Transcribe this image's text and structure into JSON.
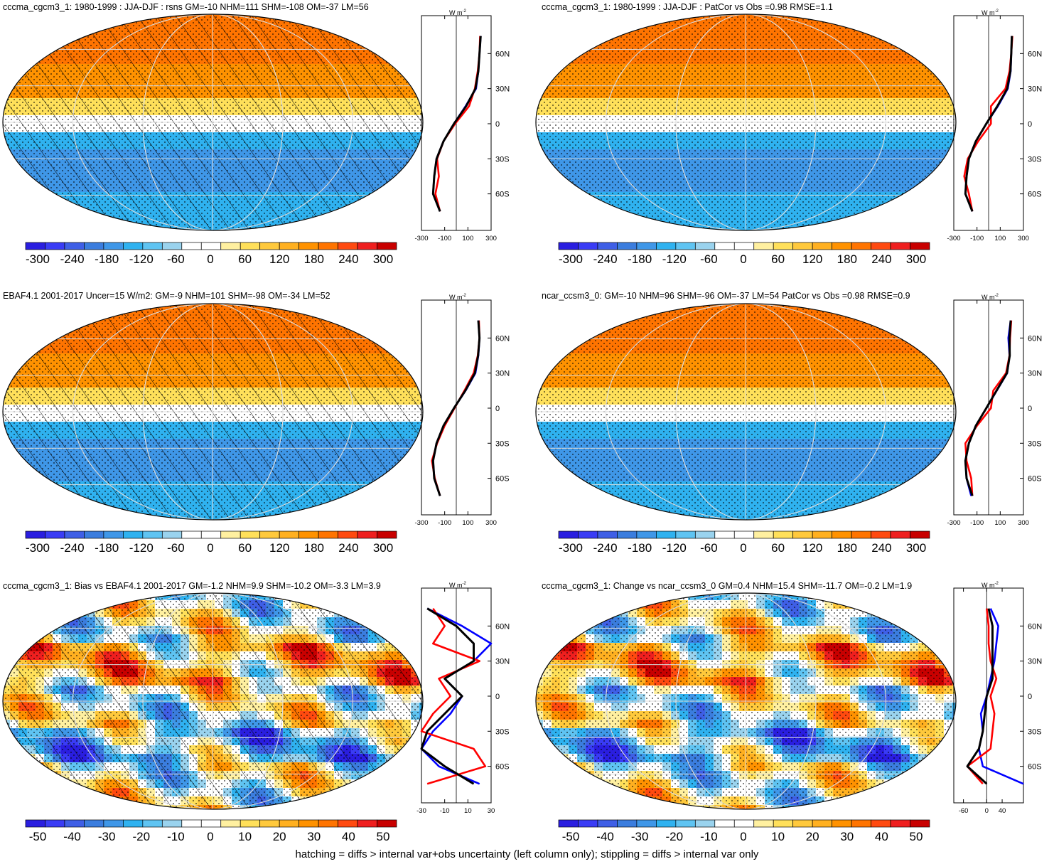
{
  "footer": "hatching = diffs > internal var+obs uncertainty (left column only); stippling = diffs > internal var only",
  "profile_unit": "W m",
  "profile_unit_sup": "-2",
  "lat_labels": [
    "60N",
    "30N",
    "0",
    "30S",
    "60S"
  ],
  "colors": {
    "scale": [
      "#2a1ee0",
      "#3a3cf5",
      "#3f5fe6",
      "#3b7dde",
      "#3f97e8",
      "#2fb2f0",
      "#5fc4f2",
      "#9ad3ee",
      "#ffffff",
      "#ffffff",
      "#fff0a0",
      "#ffe05a",
      "#ffc93c",
      "#ffb020",
      "#ff9200",
      "#ff7400",
      "#ff4a10",
      "#ef1f1f",
      "#c80000"
    ],
    "obs_line": "#0000ff",
    "model_line": "#ff0000",
    "mean_line": "#000000"
  },
  "panels": [
    {
      "id": "p1",
      "title": "cccma_cgcm3_1: 1980-1999 : JJA-DJF : rsns GM=-10 NHM=111 SHM=-108 OM=-37 LM=56",
      "colorbar_labels": [
        "-300",
        "-240",
        "-180",
        "-120",
        "-60",
        "0",
        "60",
        "120",
        "180",
        "240",
        "300"
      ],
      "profile_ticks": [
        "-300",
        "-100",
        "100",
        "300"
      ],
      "hatched": true
    },
    {
      "id": "p2",
      "title": "cccma_cgcm3_1: 1980-1999 : JJA-DJF : PatCor vs Obs =0.98 RMSE=1.1",
      "colorbar_labels": [
        "-300",
        "-240",
        "-180",
        "-120",
        "-60",
        "0",
        "60",
        "120",
        "180",
        "240",
        "300"
      ],
      "profile_ticks": [
        "-300",
        "-100",
        "100",
        "300"
      ],
      "hatched": false
    },
    {
      "id": "p3",
      "title": "EBAF4.1 2001-2017 Uncer=15 W/m2: GM=-9 NHM=101 SHM=-98 OM=-34 LM=52",
      "colorbar_labels": [
        "-300",
        "-240",
        "-180",
        "-120",
        "-60",
        "0",
        "60",
        "120",
        "180",
        "240",
        "300"
      ],
      "profile_ticks": [
        "-300",
        "-100",
        "100",
        "300"
      ],
      "hatched": true
    },
    {
      "id": "p4",
      "title": "ncar_ccsm3_0: GM=-10 NHM=96 SHM=-96 OM=-37 LM=54 PatCor vs Obs =0.98 RMSE=0.9",
      "colorbar_labels": [
        "-300",
        "-240",
        "-180",
        "-120",
        "-60",
        "0",
        "60",
        "120",
        "180",
        "240",
        "300"
      ],
      "profile_ticks": [
        "-300",
        "-100",
        "100",
        "300"
      ],
      "hatched": false
    },
    {
      "id": "p5",
      "title": "cccma_cgcm3_1: Bias vs EBAF4.1 2001-2017 GM=-1.2 NHM=9.9 SHM=-10.2 OM=-3.3 LM=3.9",
      "colorbar_labels": [
        "-50",
        "-40",
        "-30",
        "-20",
        "-10",
        "0",
        "10",
        "20",
        "30",
        "40",
        "50"
      ],
      "profile_ticks": [
        "-30",
        "-10",
        "10",
        "30"
      ],
      "hatched": true
    },
    {
      "id": "p6",
      "title": "cccma_cgcm3_1: Change vs ncar_ccsm3_0 GM=0.4 NHM=15.4 SHM=-11.7 OM=-0.2 LM=1.9",
      "colorbar_labels": [
        "-50",
        "-40",
        "-30",
        "-20",
        "-10",
        "0",
        "10",
        "20",
        "30",
        "40",
        "50"
      ],
      "profile_ticks": [
        "-60",
        "0",
        "40"
      ],
      "hatched": false
    }
  ],
  "chart_data": [
    {
      "type": "heatmap",
      "title": "cccma_cgcm3_1: 1980-1999 : JJA-DJF : rsns GM=-10 NHM=111 SHM=-108 OM=-37 LM=56",
      "zlim": [
        -300,
        300
      ],
      "colorbar_ticks": [
        -300,
        -240,
        -180,
        -120,
        -60,
        0,
        60,
        120,
        180,
        240,
        300
      ],
      "zonal_profile": {
        "x_ticks": [
          -300,
          -100,
          100,
          300
        ],
        "lat": [
          75,
          60,
          45,
          30,
          15,
          0,
          -15,
          -30,
          -45,
          -60,
          -75
        ],
        "series": [
          {
            "values": [
              210,
              200,
              190,
              170,
              80,
              -20,
              -110,
              -170,
              -190,
              -200,
              -140
            ]
          },
          {
            "values": [
              205,
              200,
              185,
              160,
              110,
              -10,
              -110,
              -165,
              -150,
              -180,
              -140
            ]
          },
          {
            "values": [
              210,
              200,
              190,
              165,
              85,
              -20,
              -110,
              -170,
              -190,
              -200,
              -140
            ]
          }
        ]
      }
    },
    {
      "type": "heatmap",
      "title": "cccma_cgcm3_1: 1980-1999 : JJA-DJF : PatCor vs Obs =0.98 RMSE=1.1",
      "zlim": [
        -300,
        300
      ],
      "colorbar_ticks": [
        -300,
        -240,
        -180,
        -120,
        -60,
        0,
        60,
        120,
        180,
        240,
        300
      ],
      "zonal_profile": {
        "x_ticks": [
          -300,
          -100,
          100,
          300
        ],
        "lat": [
          75,
          60,
          45,
          30,
          15,
          0,
          -15,
          -30,
          -45,
          -60,
          -75
        ],
        "series": [
          {
            "values": [
              200,
              195,
              190,
              165,
              80,
              -20,
              -110,
              -170,
              -190,
              -200,
              -140
            ]
          },
          {
            "values": [
              205,
              195,
              180,
              145,
              20,
              20,
              -90,
              -180,
              -210,
              -170,
              -140
            ]
          },
          {
            "values": [
              200,
              195,
              188,
              160,
              75,
              -20,
              -110,
              -170,
              -190,
              -200,
              -140
            ]
          }
        ]
      }
    },
    {
      "type": "heatmap",
      "title": "EBAF4.1 2001-2017 Uncer=15 W/m2: GM=-9 NHM=101 SHM=-98 OM=-34 LM=52",
      "zlim": [
        -300,
        300
      ],
      "colorbar_ticks": [
        -300,
        -240,
        -180,
        -120,
        -60,
        0,
        60,
        120,
        180,
        240,
        300
      ],
      "zonal_profile": {
        "x_ticks": [
          -300,
          -100,
          100,
          300
        ],
        "lat": [
          75,
          60,
          45,
          30,
          15,
          0,
          -15,
          -30,
          -45,
          -60,
          -75
        ],
        "series": [
          {
            "values": [
              190,
              200,
              190,
              165,
              80,
              -20,
              -110,
              -170,
              -200,
              -190,
              -140
            ]
          },
          {
            "values": [
              195,
              200,
              185,
              150,
              70,
              -15,
              -100,
              -165,
              -210,
              -185,
              -140
            ]
          },
          {
            "values": [
              190,
              200,
              188,
              160,
              78,
              -20,
              -110,
              -170,
              -200,
              -190,
              -140
            ]
          }
        ]
      }
    },
    {
      "type": "heatmap",
      "title": "ncar_ccsm3_0: GM=-10 NHM=96 SHM=-96 OM=-37 LM=54 PatCor vs Obs =0.98 RMSE=0.9",
      "zlim": [
        -300,
        300
      ],
      "colorbar_ticks": [
        -300,
        -240,
        -180,
        -120,
        -60,
        0,
        60,
        120,
        180,
        240,
        300
      ],
      "zonal_profile": {
        "x_ticks": [
          -300,
          -100,
          100,
          300
        ],
        "lat": [
          75,
          60,
          45,
          30,
          15,
          0,
          -15,
          -30,
          -45,
          -60,
          -75
        ],
        "series": [
          {
            "values": [
              190,
              170,
              180,
              160,
              70,
              -20,
              -110,
              -170,
              -200,
              -190,
              -150
            ]
          },
          {
            "values": [
              195,
              185,
              180,
              150,
              40,
              20,
              -100,
              -200,
              -190,
              -150,
              -140
            ]
          },
          {
            "values": [
              190,
              180,
              182,
              158,
              68,
              -20,
              -110,
              -170,
              -200,
              -190,
              -140
            ]
          }
        ]
      }
    },
    {
      "type": "heatmap",
      "title": "cccma_cgcm3_1: Bias vs EBAF4.1 2001-2017 GM=-1.2 NHM=9.9 SHM=-10.2 OM=-3.3 LM=3.9",
      "zlim": [
        -50,
        50
      ],
      "colorbar_ticks": [
        -50,
        -40,
        -30,
        -20,
        -10,
        0,
        10,
        20,
        30,
        40,
        50
      ],
      "zonal_profile": {
        "x_ticks": [
          -30,
          -10,
          10,
          30
        ],
        "lat": [
          75,
          60,
          45,
          30,
          15,
          0,
          -15,
          -30,
          -45,
          -60,
          -75
        ],
        "series": [
          {
            "values": [
              -25,
              5,
              30,
              15,
              -10,
              5,
              -5,
              -20,
              -30,
              -15,
              20
            ]
          },
          {
            "values": [
              -20,
              -10,
              -20,
              20,
              -15,
              -5,
              -20,
              -30,
              15,
              25,
              -25
            ]
          },
          {
            "values": [
              -25,
              0,
              15,
              15,
              -10,
              5,
              -10,
              -25,
              -30,
              -10,
              15
            ]
          }
        ]
      }
    },
    {
      "type": "heatmap",
      "title": "cccma_cgcm3_1: Change vs ncar_ccsm3_0 GM=0.4 NHM=15.4 SHM=-11.7 OM=-0.2 LM=1.9",
      "zlim": [
        -50,
        50
      ],
      "colorbar_ticks": [
        -50,
        -40,
        -30,
        -20,
        -10,
        0,
        10,
        20,
        30,
        40,
        50
      ],
      "zonal_profile": {
        "x_ticks": [
          -60,
          0,
          40
        ],
        "lat": [
          75,
          60,
          45,
          30,
          15,
          0,
          -15,
          -30,
          -45,
          -60,
          -75
        ],
        "series": [
          {
            "values": [
              10,
              30,
              25,
              20,
              10,
              0,
              -15,
              -10,
              -20,
              -10,
              100
            ]
          },
          {
            "values": [
              0,
              5,
              5,
              10,
              25,
              10,
              20,
              15,
              10,
              -50,
              -10
            ]
          },
          {
            "values": [
              5,
              15,
              15,
              15,
              15,
              0,
              -5,
              -10,
              -20,
              -50,
              0
            ]
          }
        ]
      }
    }
  ]
}
